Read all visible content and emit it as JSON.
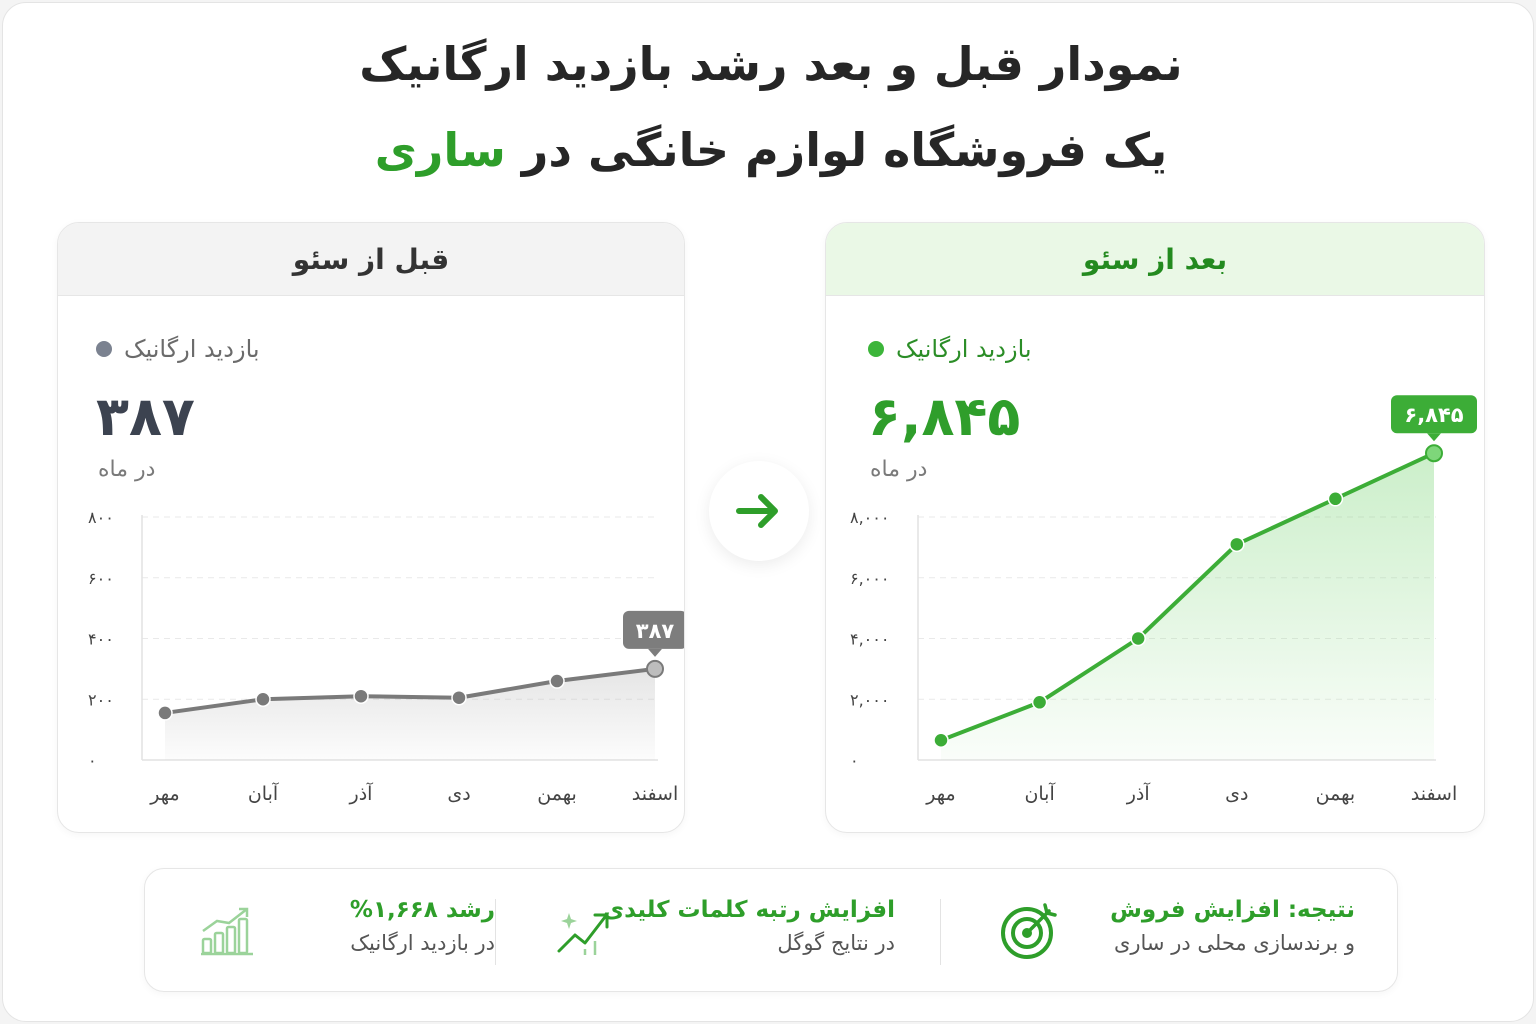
{
  "title": {
    "line1": "نمودار قبل و بعد رشد بازدید ارگانیک",
    "line2_prefix": "یک فروشگاه لوازم خانگی در",
    "line2_accent": "ساری"
  },
  "before": {
    "header": "قبل از سئو",
    "metric_label": "بازدید ارگانیک",
    "metric_value": "۳۸۷",
    "metric_unit": "در ماه",
    "callout": "۳۸۷"
  },
  "after": {
    "header": "بعد از سئو",
    "metric_label": "بازدید ارگانیک",
    "metric_value": "۶,۸۴۵",
    "metric_unit": "در ماه",
    "callout": "۶,۸۴۵"
  },
  "colors": {
    "before_line": "#7a7a7a",
    "after_line": "#3cad37",
    "accent": "#2e9e2a"
  },
  "chart_data": [
    {
      "type": "line",
      "x": [
        "مهر",
        "آبان",
        "آذر",
        "دی",
        "بهمن",
        "اسفند"
      ],
      "series": [
        {
          "values": [
            155,
            200,
            210,
            205,
            260,
            300
          ]
        }
      ],
      "ylim": [
        0,
        800
      ],
      "yticks": [
        0,
        200,
        400,
        600,
        800
      ],
      "ytick_labels": [
        "۰",
        "۲۰۰",
        "۴۰۰",
        "۶۰۰",
        "۸۰۰"
      ],
      "grid": true
    },
    {
      "type": "area",
      "x": [
        "مهر",
        "آبان",
        "آذر",
        "دی",
        "بهمن",
        "اسفند"
      ],
      "series": [
        {
          "values": [
            650,
            1900,
            4000,
            7100,
            8600,
            10100
          ]
        }
      ],
      "ylim": [
        0,
        8000
      ],
      "yticks": [
        0,
        2000,
        4000,
        6000,
        8000
      ],
      "ytick_labels": [
        "۰",
        "۲,۰۰۰",
        "۴,۰۰۰",
        "۶,۰۰۰",
        "۸,۰۰۰"
      ],
      "grid": true
    }
  ],
  "summary": [
    {
      "title": "رشد ۱,۶۶۸%",
      "subtitle": "در بازدید ارگانیک",
      "icon": "bar-growth-icon"
    },
    {
      "title": "افزایش رتبه کلمات کلیدی",
      "subtitle": "در نتایج گوگل",
      "icon": "trend-up-icon"
    },
    {
      "title": "نتیجه: افزایش فروش",
      "subtitle": "و برندسازی محلی در ساری",
      "icon": "target-icon"
    }
  ]
}
